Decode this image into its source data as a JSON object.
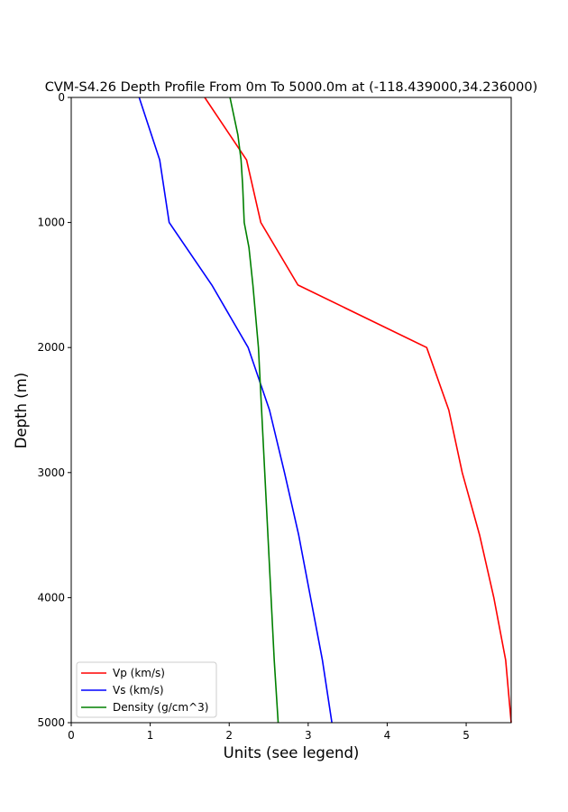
{
  "chart_data": {
    "type": "line",
    "title": "CVM-S4.26 Depth Profile From 0m To 5000.0m at (-118.439000,34.236000)",
    "xlabel": "Units (see legend)",
    "ylabel": "Depth (m)",
    "xlim": [
      0,
      5.57
    ],
    "ylim": [
      5000,
      0
    ],
    "y_inverted": true,
    "xticks": [
      0,
      1,
      2,
      3,
      4,
      5
    ],
    "yticks": [
      0,
      1000,
      2000,
      3000,
      4000,
      5000
    ],
    "grid": false,
    "legend_position": "lower-left",
    "series": [
      {
        "name": "Vp (km/s)",
        "color": "#ff0000",
        "points": [
          [
            1.69,
            0
          ],
          [
            2.22,
            500
          ],
          [
            2.4,
            1000
          ],
          [
            2.87,
            1500
          ],
          [
            4.5,
            2000
          ],
          [
            4.78,
            2500
          ],
          [
            4.95,
            3000
          ],
          [
            5.17,
            3500
          ],
          [
            5.35,
            4000
          ],
          [
            5.5,
            4500
          ],
          [
            5.57,
            5000
          ]
        ]
      },
      {
        "name": "Vs (km/s)",
        "color": "#0000ff",
        "points": [
          [
            0.86,
            0
          ],
          [
            1.12,
            500
          ],
          [
            1.24,
            1000
          ],
          [
            1.78,
            1500
          ],
          [
            2.24,
            2000
          ],
          [
            2.51,
            2500
          ],
          [
            2.7,
            3000
          ],
          [
            2.88,
            3500
          ],
          [
            3.03,
            4000
          ],
          [
            3.18,
            4500
          ],
          [
            3.3,
            5000
          ]
        ]
      },
      {
        "name": "Density (g/cm^3)",
        "color": "#008000",
        "points": [
          [
            2.01,
            0
          ],
          [
            2.11,
            300
          ],
          [
            2.15,
            500
          ],
          [
            2.17,
            700
          ],
          [
            2.19,
            1000
          ],
          [
            2.25,
            1200
          ],
          [
            2.3,
            1500
          ],
          [
            2.37,
            2000
          ],
          [
            2.41,
            2500
          ],
          [
            2.45,
            3000
          ],
          [
            2.49,
            3500
          ],
          [
            2.53,
            4000
          ],
          [
            2.57,
            4500
          ],
          [
            2.62,
            5000
          ]
        ]
      }
    ]
  }
}
